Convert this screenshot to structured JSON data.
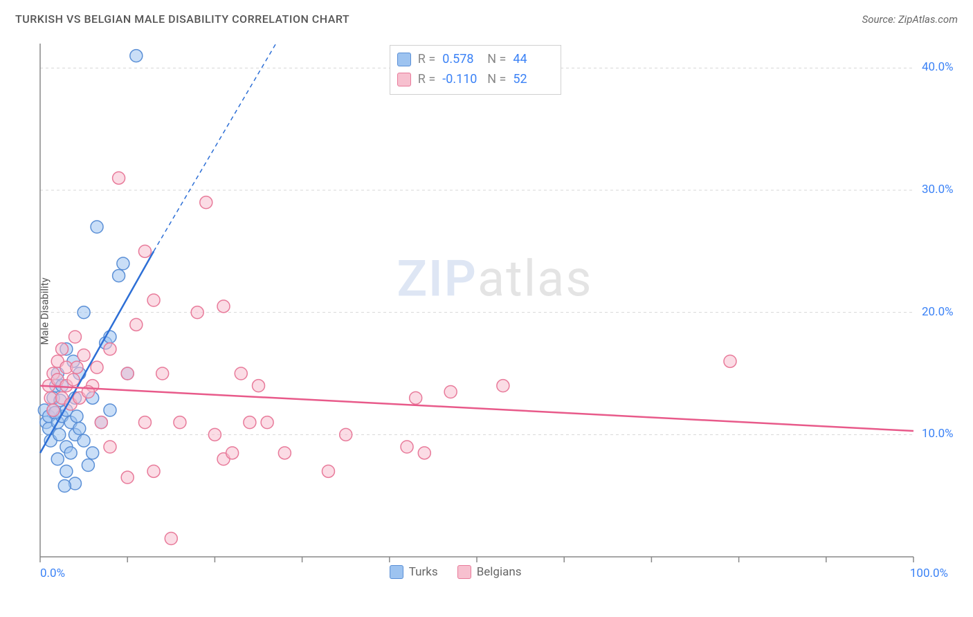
{
  "title": "TURKISH VS BELGIAN MALE DISABILITY CORRELATION CHART",
  "source": "Source: ZipAtlas.com",
  "ylabel": "Male Disability",
  "watermark": {
    "part1": "ZIP",
    "part2": "atlas"
  },
  "chart": {
    "type": "scatter",
    "background_color": "#ffffff",
    "grid_color": "#d7d7d7",
    "axis_color": "#888888",
    "xlim": [
      0,
      100
    ],
    "ylim": [
      0,
      42
    ],
    "x_ticks": [
      0,
      10,
      20,
      30,
      40,
      50,
      60,
      70,
      80,
      90,
      100
    ],
    "y_gridlines": [
      10,
      20,
      30,
      40
    ],
    "x_tick_labels": {
      "0": "0.0%",
      "100": "100.0%"
    },
    "y_tick_labels": {
      "10": "10.0%",
      "20": "20.0%",
      "30": "30.0%",
      "40": "40.0%"
    },
    "tick_label_color": "#3b82f6",
    "tick_label_fontsize": 17,
    "marker_radius": 9,
    "marker_stroke_width": 1.5,
    "trendline_width": 2.5,
    "series": [
      {
        "name": "Turks",
        "fill_color": "#9dc3f0",
        "stroke_color": "#5a8fd6",
        "fill_opacity": 0.55,
        "r_value": "0.578",
        "n_value": "44",
        "trendline": {
          "x1": 0,
          "y1": 8.5,
          "x2": 13,
          "y2": 25,
          "dash_extend_x2": 27,
          "dash_extend_y2": 42,
          "color": "#2d6fd6"
        },
        "points": [
          [
            0.5,
            12
          ],
          [
            0.7,
            11
          ],
          [
            1,
            10.5
          ],
          [
            1,
            11.5
          ],
          [
            1.2,
            9.5
          ],
          [
            1.5,
            12
          ],
          [
            1.5,
            13
          ],
          [
            1.8,
            14
          ],
          [
            2,
            8
          ],
          [
            2,
            11
          ],
          [
            2,
            15
          ],
          [
            2.2,
            10
          ],
          [
            2.5,
            11.5
          ],
          [
            2.5,
            14
          ],
          [
            3,
            7
          ],
          [
            3,
            9
          ],
          [
            3,
            12
          ],
          [
            3,
            17
          ],
          [
            3.5,
            8.5
          ],
          [
            3.5,
            11
          ],
          [
            4,
            6
          ],
          [
            4,
            10
          ],
          [
            4,
            13
          ],
          [
            4.5,
            10.5
          ],
          [
            4.5,
            15
          ],
          [
            5,
            20
          ],
          [
            5,
            9.5
          ],
          [
            5.5,
            7.5
          ],
          [
            6,
            8.5
          ],
          [
            6,
            13
          ],
          [
            6.5,
            27
          ],
          [
            7,
            11
          ],
          [
            7.5,
            17.5
          ],
          [
            8,
            12
          ],
          [
            8,
            18
          ],
          [
            9,
            23
          ],
          [
            9.5,
            24
          ],
          [
            10,
            15
          ],
          [
            11,
            41
          ],
          [
            2.8,
            5.8
          ],
          [
            3.8,
            16
          ],
          [
            1.7,
            11.8
          ],
          [
            2.3,
            12.8
          ],
          [
            4.2,
            11.5
          ]
        ]
      },
      {
        "name": "Belgians",
        "fill_color": "#f7c0cf",
        "stroke_color": "#e87a9a",
        "fill_opacity": 0.55,
        "r_value": "-0.110",
        "n_value": "52",
        "trendline": {
          "x1": 0,
          "y1": 14,
          "x2": 100,
          "y2": 10.3,
          "color": "#e85a8a"
        },
        "points": [
          [
            1,
            14
          ],
          [
            1.2,
            13
          ],
          [
            1.5,
            15
          ],
          [
            1.5,
            12
          ],
          [
            2,
            14.5
          ],
          [
            2,
            16
          ],
          [
            2.5,
            13
          ],
          [
            2.5,
            17
          ],
          [
            3,
            14
          ],
          [
            3,
            15.5
          ],
          [
            3.5,
            12.5
          ],
          [
            4,
            18
          ],
          [
            4.5,
            13
          ],
          [
            5,
            16.5
          ],
          [
            6,
            14
          ],
          [
            7,
            11
          ],
          [
            8,
            9
          ],
          [
            8,
            17
          ],
          [
            9,
            31
          ],
          [
            10,
            6.5
          ],
          [
            10,
            15
          ],
          [
            11,
            19
          ],
          [
            12,
            11
          ],
          [
            12,
            25
          ],
          [
            13,
            21
          ],
          [
            13,
            7
          ],
          [
            14,
            15
          ],
          [
            15,
            1.5
          ],
          [
            16,
            11
          ],
          [
            18,
            20
          ],
          [
            19,
            29
          ],
          [
            20,
            10
          ],
          [
            21,
            8
          ],
          [
            21,
            20.5
          ],
          [
            22,
            8.5
          ],
          [
            23,
            15
          ],
          [
            24,
            11
          ],
          [
            25,
            14
          ],
          [
            26,
            11
          ],
          [
            28,
            8.5
          ],
          [
            33,
            7
          ],
          [
            35,
            10
          ],
          [
            42,
            9
          ],
          [
            43,
            13
          ],
          [
            44,
            8.5
          ],
          [
            47,
            13.5
          ],
          [
            53,
            14
          ],
          [
            79,
            16
          ],
          [
            3.8,
            14.5
          ],
          [
            4.2,
            15.5
          ],
          [
            5.5,
            13.5
          ],
          [
            6.5,
            15.5
          ]
        ]
      }
    ]
  },
  "legend_top": {
    "r_label": "R  =",
    "n_label": "N  ="
  },
  "legend_bottom": {
    "items": [
      "Turks",
      "Belgians"
    ]
  }
}
